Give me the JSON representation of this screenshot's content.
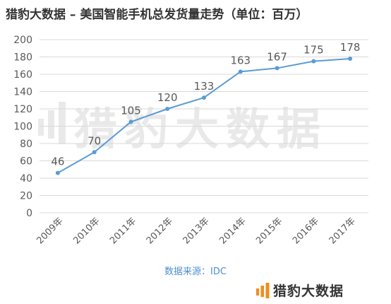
{
  "header": {
    "title": "猎豹大数据 – 美国智能手机总发货量走势（单位：百万）"
  },
  "watermark": {
    "text": "猎豹大数据"
  },
  "footer": {
    "source": "数据来源：IDC",
    "brand": "猎豹大数据"
  },
  "colors": {
    "line": "#5b9bd5",
    "grid": "#d9d9d9",
    "text": "#595959",
    "logo_accent": "#f08c1e"
  },
  "chart_data": {
    "type": "line",
    "title": "猎豹大数据 – 美国智能手机总发货量走势（单位：百万）",
    "categories": [
      "2009年",
      "2010年",
      "2011年",
      "2012年",
      "2013年",
      "2014年",
      "2015年",
      "2016年",
      "2017年"
    ],
    "series": [
      {
        "values": [
          46,
          70,
          105,
          120,
          133,
          163,
          167,
          175,
          178
        ]
      }
    ],
    "data_labels": [
      "46",
      "70",
      "105",
      "120",
      "133",
      "163",
      "167",
      "175",
      "178"
    ],
    "ylim": [
      0,
      200
    ],
    "yticks": [
      0,
      20,
      40,
      60,
      80,
      100,
      120,
      140,
      160,
      180,
      200
    ],
    "xlabel": "",
    "ylabel": "",
    "grid": true,
    "legend": "none"
  }
}
